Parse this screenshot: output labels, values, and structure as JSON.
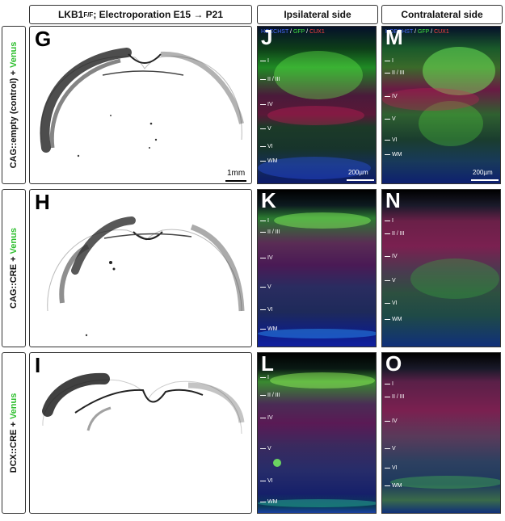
{
  "header": {
    "experiment_prefix": "LKB1",
    "experiment_sup": "F/F",
    "experiment_rest": " ; Electroporation E15 → P21",
    "ipsilateral": "Ipsilateral side",
    "contralateral": "Contralateral side"
  },
  "rows": [
    {
      "construct": "CAG::empty (control) + ",
      "reporter": "Venus",
      "brain_label": "G",
      "ipsi_label": "J",
      "contra_label": "M",
      "ipsi_layers": [
        "I",
        "II / III",
        "IV",
        "V",
        "VI",
        "WM"
      ],
      "contra_layers": [
        "I",
        "II / III",
        "IV",
        "V",
        "VI",
        "WM"
      ]
    },
    {
      "construct": "CAG::CRE + ",
      "reporter": "Venus",
      "brain_label": "H",
      "ipsi_label": "K",
      "contra_label": "N",
      "ipsi_layers": [
        "I",
        "II / III",
        "IV",
        "V",
        "VI",
        "WM"
      ],
      "contra_layers": [
        "I",
        "II / III",
        "IV",
        "V",
        "VI",
        "WM"
      ]
    },
    {
      "construct": "DCX::CRE + ",
      "reporter": "Venus",
      "brain_label": "I",
      "ipsi_label": "L",
      "contra_label": "O",
      "ipsi_layers": [
        "I",
        "II / III",
        "IV",
        "V",
        "VI",
        "WM"
      ],
      "contra_layers": [
        "I",
        "II / III",
        "IV",
        "V",
        "VI",
        "WM"
      ]
    }
  ],
  "stain": {
    "hoechst": "HOECHST",
    "sep1": " / ",
    "gfp": "GFP",
    "sep2": " / ",
    "cux1": "CUX1"
  },
  "scale_bars": {
    "brain": "1mm",
    "micro": "200µm"
  },
  "colors": {
    "venus": "#2fbf2f",
    "hoechst": "#4a6cff",
    "gfp": "#3fe23f",
    "cux1": "#ff4040"
  }
}
